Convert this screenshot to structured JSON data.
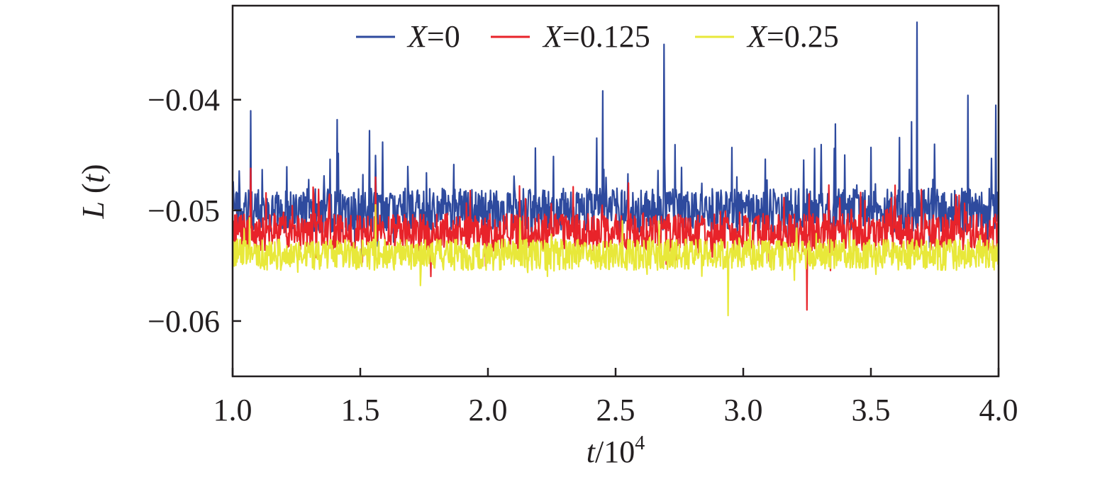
{
  "chart_data": {
    "type": "line",
    "title": "",
    "xlabel": {
      "var": "t",
      "rest": "/10",
      "exp": "4"
    },
    "ylabel": {
      "var": "L",
      "rest": " (",
      "arg": "t",
      "close": ")"
    },
    "xlim": [
      1.0,
      4.0
    ],
    "ylim": [
      -0.065,
      -0.0315
    ],
    "xticks": [
      1.0,
      1.5,
      2.0,
      2.5,
      3.0,
      3.5,
      4.0
    ],
    "xtick_labels": [
      "1.0",
      "1.5",
      "2.0",
      "2.5",
      "3.0",
      "3.5",
      "4.0"
    ],
    "yticks": [
      -0.04,
      -0.05,
      -0.06
    ],
    "ytick_labels": [
      "−0.04",
      "−0.05",
      "−0.06"
    ],
    "legend_position": "top",
    "series": [
      {
        "name_var": "X",
        "name_rest": "=0",
        "color": "#2e4a9e",
        "baseline": -0.05,
        "noise": 0.002,
        "spike_prob": 0.06,
        "spike_scale": 0.006,
        "dip_floor": -0.0585,
        "peaks": [
          [
            1.07,
            -0.041
          ],
          [
            1.41,
            -0.0418
          ],
          [
            2.45,
            -0.0392
          ],
          [
            2.69,
            -0.035
          ],
          [
            3.36,
            -0.0422
          ],
          [
            3.66,
            -0.042
          ],
          [
            3.68,
            -0.033
          ],
          [
            3.88,
            -0.0396
          ],
          [
            3.99,
            -0.0405
          ]
        ]
      },
      {
        "name_var": "X",
        "name_rest": "=0.125",
        "color": "#e8232a",
        "baseline": -0.052,
        "noise": 0.0017,
        "spike_prob": 0.05,
        "spike_scale": 0.0035,
        "dip_floor": -0.0592,
        "peaks": [
          [
            1.07,
            -0.0462
          ],
          [
            1.56,
            -0.047
          ],
          [
            3.25,
            -0.059
          ]
        ]
      },
      {
        "name_var": "X",
        "name_rest": "=0.25",
        "color": "#e8e83a",
        "baseline": -0.054,
        "noise": 0.0014,
        "spike_prob": 0.04,
        "spike_scale": 0.0022,
        "dip_floor": -0.0595,
        "peaks": [
          [
            1.56,
            -0.0495
          ],
          [
            2.94,
            -0.0595
          ]
        ]
      }
    ]
  }
}
